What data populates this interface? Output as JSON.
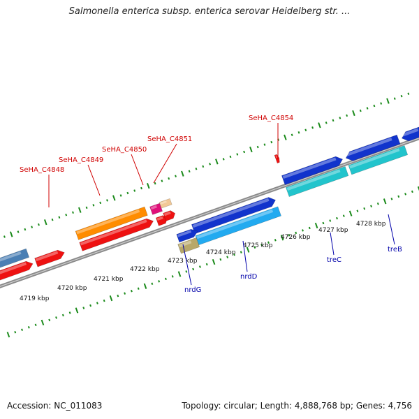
{
  "title": "Salmonella enterica subsp. enterica serovar Heidelberg str. ...",
  "footer": {
    "accession": "Accession: NC_011083",
    "topology": "Topology: circular; Length: 4,888,768 bp; Genes: 4,756"
  },
  "colors": {
    "backbone": "#8a8a8a",
    "tick": "#1a8a1a",
    "top_label": "#d00000",
    "bottom_label": "#0000aa"
  },
  "ticks": [
    "4719 kbp",
    "4720 kbp",
    "4721 kbp",
    "4722 kbp",
    "4723 kbp",
    "4724 kbp",
    "4725 kbp",
    "4726 kbp",
    "4727 kbp",
    "4728 kbp"
  ],
  "top_gene_labels": [
    "SeHA_C4848",
    "SeHA_C4849",
    "SeHA_C4850",
    "SeHA_C4851",
    "SeHA_C4854"
  ],
  "bottom_gene_labels": [
    "nrdG",
    "nrdD",
    "treC",
    "treB"
  ]
}
